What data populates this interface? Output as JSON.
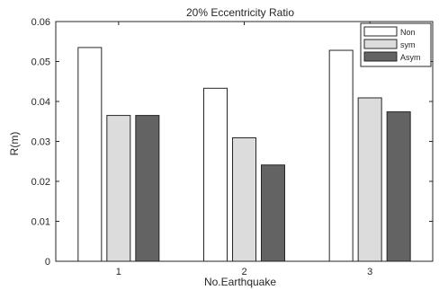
{
  "chart_data": {
    "type": "bar",
    "title": "20% Eccentricity Ratio",
    "xlabel": "No.Earthquake",
    "ylabel": "R(m)",
    "categories": [
      "1",
      "2",
      "3"
    ],
    "series": [
      {
        "name": "Non",
        "color": "#ffffff",
        "values": [
          0.0535,
          0.0433,
          0.0528
        ]
      },
      {
        "name": "sym",
        "color": "#dcdcdc",
        "values": [
          0.0365,
          0.0309,
          0.0409
        ]
      },
      {
        "name": "Asym",
        "color": "#636363",
        "values": [
          0.0365,
          0.0241,
          0.0374
        ]
      }
    ],
    "ylim": [
      0,
      0.06
    ],
    "yticks": [
      "0",
      "0.01",
      "0.02",
      "0.03",
      "0.04",
      "0.05",
      "0.06"
    ],
    "legend_position": "top-right",
    "grid": false
  }
}
